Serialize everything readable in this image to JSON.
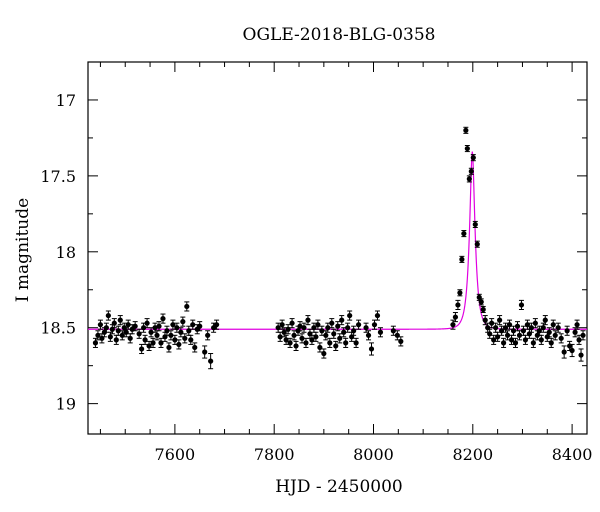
{
  "chart_data": {
    "type": "scatter",
    "title": "OGLE-2018-BLG-0358",
    "xlabel": "HJD - 2450000",
    "ylabel": "I magnitude",
    "xlim": [
      7425,
      8430
    ],
    "ylim": [
      19.2,
      16.75
    ],
    "y_inverted": true,
    "x_ticks": [
      7600,
      7800,
      8000,
      8200,
      8400
    ],
    "y_ticks": [
      17,
      17.5,
      18,
      18.5,
      19
    ],
    "grid": false,
    "colors": {
      "points": "#000000",
      "model": "#e000e0",
      "axes": "#000000"
    },
    "model": {
      "name": "",
      "baseline": 18.51,
      "t0": 8199,
      "peak": 17.34,
      "tE": 11,
      "x_start": 7425,
      "x_end": 8430
    },
    "series": [
      {
        "name": "",
        "points": [
          [
            7440,
            18.6,
            0.03
          ],
          [
            7445,
            18.55,
            0.03
          ],
          [
            7450,
            18.48,
            0.03
          ],
          [
            7453,
            18.57,
            0.03
          ],
          [
            7458,
            18.53,
            0.03
          ],
          [
            7462,
            18.5,
            0.03
          ],
          [
            7466,
            18.42,
            0.03
          ],
          [
            7470,
            18.56,
            0.03
          ],
          [
            7474,
            18.51,
            0.03
          ],
          [
            7478,
            18.47,
            0.03
          ],
          [
            7482,
            18.58,
            0.03
          ],
          [
            7486,
            18.52,
            0.03
          ],
          [
            7490,
            18.45,
            0.03
          ],
          [
            7494,
            18.55,
            0.03
          ],
          [
            7498,
            18.5,
            0.03
          ],
          [
            7502,
            18.53,
            0.03
          ],
          [
            7506,
            18.48,
            0.03
          ],
          [
            7510,
            18.57,
            0.03
          ],
          [
            7514,
            18.51,
            0.03
          ],
          [
            7520,
            18.49,
            0.03
          ],
          [
            7528,
            18.54,
            0.03
          ],
          [
            7533,
            18.64,
            0.03
          ],
          [
            7537,
            18.5,
            0.03
          ],
          [
            7540,
            18.58,
            0.03
          ],
          [
            7544,
            18.47,
            0.03
          ],
          [
            7548,
            18.62,
            0.03
          ],
          [
            7552,
            18.53,
            0.03
          ],
          [
            7556,
            18.6,
            0.03
          ],
          [
            7560,
            18.5,
            0.03
          ],
          [
            7564,
            18.55,
            0.03
          ],
          [
            7568,
            18.49,
            0.03
          ],
          [
            7572,
            18.6,
            0.03
          ],
          [
            7576,
            18.44,
            0.03
          ],
          [
            7580,
            18.56,
            0.03
          ],
          [
            7584,
            18.52,
            0.03
          ],
          [
            7588,
            18.63,
            0.03
          ],
          [
            7592,
            18.55,
            0.03
          ],
          [
            7596,
            18.48,
            0.03
          ],
          [
            7600,
            18.58,
            0.03
          ],
          [
            7604,
            18.5,
            0.03
          ],
          [
            7608,
            18.61,
            0.03
          ],
          [
            7612,
            18.53,
            0.03
          ],
          [
            7616,
            18.46,
            0.03
          ],
          [
            7620,
            18.57,
            0.03
          ],
          [
            7624,
            18.36,
            0.03
          ],
          [
            7628,
            18.52,
            0.03
          ],
          [
            7632,
            18.58,
            0.03
          ],
          [
            7636,
            18.48,
            0.03
          ],
          [
            7640,
            18.63,
            0.03
          ],
          [
            7645,
            18.51,
            0.03
          ],
          [
            7650,
            18.49,
            0.03
          ],
          [
            7660,
            18.66,
            0.04
          ],
          [
            7666,
            18.55,
            0.03
          ],
          [
            7672,
            18.72,
            0.05
          ],
          [
            7678,
            18.5,
            0.03
          ],
          [
            7684,
            18.48,
            0.03
          ],
          [
            7808,
            18.5,
            0.03
          ],
          [
            7812,
            18.56,
            0.03
          ],
          [
            7816,
            18.48,
            0.03
          ],
          [
            7820,
            18.53,
            0.03
          ],
          [
            7824,
            18.58,
            0.03
          ],
          [
            7828,
            18.51,
            0.03
          ],
          [
            7832,
            18.6,
            0.03
          ],
          [
            7836,
            18.47,
            0.03
          ],
          [
            7840,
            18.55,
            0.03
          ],
          [
            7844,
            18.62,
            0.03
          ],
          [
            7848,
            18.52,
            0.03
          ],
          [
            7852,
            18.49,
            0.03
          ],
          [
            7856,
            18.57,
            0.03
          ],
          [
            7860,
            18.5,
            0.03
          ],
          [
            7864,
            18.6,
            0.03
          ],
          [
            7868,
            18.45,
            0.03
          ],
          [
            7872,
            18.54,
            0.03
          ],
          [
            7876,
            18.58,
            0.03
          ],
          [
            7880,
            18.5,
            0.03
          ],
          [
            7884,
            18.56,
            0.03
          ],
          [
            7888,
            18.48,
            0.03
          ],
          [
            7892,
            18.63,
            0.03
          ],
          [
            7896,
            18.52,
            0.03
          ],
          [
            7900,
            18.67,
            0.03
          ],
          [
            7904,
            18.55,
            0.03
          ],
          [
            7908,
            18.5,
            0.03
          ],
          [
            7912,
            18.6,
            0.03
          ],
          [
            7916,
            18.47,
            0.03
          ],
          [
            7920,
            18.54,
            0.03
          ],
          [
            7924,
            18.62,
            0.03
          ],
          [
            7928,
            18.49,
            0.03
          ],
          [
            7932,
            18.57,
            0.03
          ],
          [
            7936,
            18.45,
            0.03
          ],
          [
            7940,
            18.53,
            0.03
          ],
          [
            7944,
            18.6,
            0.03
          ],
          [
            7948,
            18.5,
            0.03
          ],
          [
            7952,
            18.42,
            0.03
          ],
          [
            7956,
            18.56,
            0.03
          ],
          [
            7960,
            18.52,
            0.03
          ],
          [
            7965,
            18.6,
            0.03
          ],
          [
            7970,
            18.48,
            0.03
          ],
          [
            7985,
            18.5,
            0.03
          ],
          [
            7990,
            18.55,
            0.03
          ],
          [
            7996,
            18.64,
            0.04
          ],
          [
            8002,
            18.48,
            0.03
          ],
          [
            8008,
            18.42,
            0.03
          ],
          [
            8014,
            18.53,
            0.03
          ],
          [
            8040,
            18.52,
            0.03
          ],
          [
            8048,
            18.55,
            0.03
          ],
          [
            8055,
            18.59,
            0.03
          ],
          [
            8160,
            18.48,
            0.03
          ],
          [
            8165,
            18.43,
            0.03
          ],
          [
            8170,
            18.35,
            0.03
          ],
          [
            8174,
            18.27,
            0.02
          ],
          [
            8178,
            18.05,
            0.02
          ],
          [
            8182,
            17.88,
            0.02
          ],
          [
            8186,
            17.2,
            0.02
          ],
          [
            8189,
            17.32,
            0.02
          ],
          [
            8193,
            17.52,
            0.02
          ],
          [
            8197,
            17.47,
            0.02
          ],
          [
            8201,
            17.38,
            0.02
          ],
          [
            8205,
            17.82,
            0.02
          ],
          [
            8209,
            17.95,
            0.02
          ],
          [
            8213,
            18.3,
            0.02
          ],
          [
            8217,
            18.33,
            0.02
          ],
          [
            8221,
            18.38,
            0.02
          ],
          [
            8225,
            18.45,
            0.03
          ],
          [
            8230,
            18.5,
            0.03
          ],
          [
            8234,
            18.54,
            0.03
          ],
          [
            8238,
            18.47,
            0.03
          ],
          [
            8242,
            18.58,
            0.03
          ],
          [
            8246,
            18.5,
            0.03
          ],
          [
            8250,
            18.56,
            0.03
          ],
          [
            8254,
            18.45,
            0.03
          ],
          [
            8258,
            18.52,
            0.03
          ],
          [
            8262,
            18.6,
            0.03
          ],
          [
            8266,
            18.5,
            0.03
          ],
          [
            8270,
            18.55,
            0.03
          ],
          [
            8274,
            18.48,
            0.03
          ],
          [
            8278,
            18.58,
            0.03
          ],
          [
            8282,
            18.52,
            0.03
          ],
          [
            8286,
            18.6,
            0.03
          ],
          [
            8290,
            18.49,
            0.03
          ],
          [
            8294,
            18.55,
            0.03
          ],
          [
            8298,
            18.35,
            0.03
          ],
          [
            8302,
            18.52,
            0.03
          ],
          [
            8306,
            18.58,
            0.03
          ],
          [
            8310,
            18.48,
            0.03
          ],
          [
            8314,
            18.54,
            0.03
          ],
          [
            8318,
            18.5,
            0.03
          ],
          [
            8322,
            18.6,
            0.03
          ],
          [
            8326,
            18.47,
            0.03
          ],
          [
            8330,
            18.55,
            0.03
          ],
          [
            8334,
            18.52,
            0.03
          ],
          [
            8338,
            18.58,
            0.03
          ],
          [
            8342,
            18.5,
            0.03
          ],
          [
            8346,
            18.45,
            0.03
          ],
          [
            8350,
            18.56,
            0.03
          ],
          [
            8354,
            18.53,
            0.03
          ],
          [
            8358,
            18.6,
            0.03
          ],
          [
            8362,
            18.48,
            0.03
          ],
          [
            8366,
            18.55,
            0.03
          ],
          [
            8372,
            18.5,
            0.03
          ],
          [
            8378,
            18.57,
            0.03
          ],
          [
            8384,
            18.66,
            0.04
          ],
          [
            8390,
            18.52,
            0.03
          ],
          [
            8395,
            18.62,
            0.03
          ],
          [
            8400,
            18.65,
            0.04
          ],
          [
            8406,
            18.53,
            0.03
          ],
          [
            8410,
            18.48,
            0.03
          ],
          [
            8414,
            18.58,
            0.03
          ],
          [
            8418,
            18.68,
            0.04
          ],
          [
            8422,
            18.55,
            0.03
          ]
        ]
      }
    ]
  }
}
